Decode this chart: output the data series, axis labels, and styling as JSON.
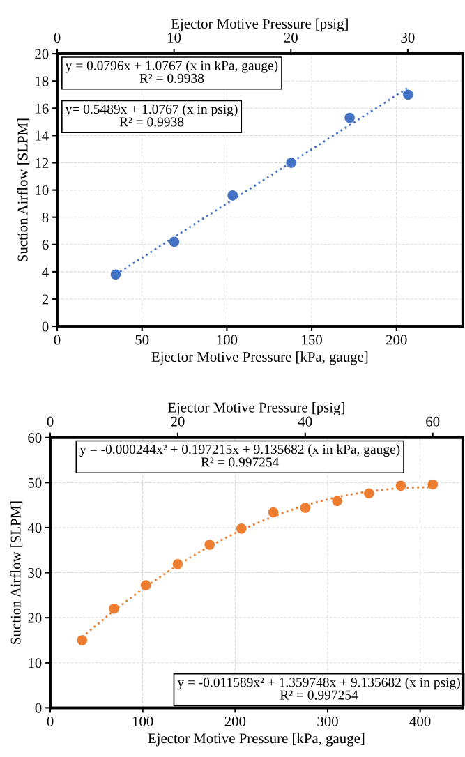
{
  "chart_data": [
    {
      "type": "scatter",
      "xlabel": "Ejector Motive Pressure [kPa, gauge]",
      "ylabel": "Suction Airflow [SLPM]",
      "x2label": "Ejector Motive Pressure [psig]",
      "x": [
        34.5,
        69,
        103.4,
        137.9,
        172.4,
        206.8
      ],
      "series": [
        {
          "color": "#4472c4",
          "values": [
            3.8,
            6.2,
            9.6,
            12.0,
            15.3,
            17.0
          ],
          "marker": "circle"
        },
        {
          "type": "line",
          "color": "#4472c4",
          "line_style": "dotted",
          "marker": "none",
          "x": [
            34.5,
            206.8
          ],
          "values": [
            3.8,
            17.5
          ]
        }
      ],
      "xlim": [
        0,
        239
      ],
      "xticks": [
        0,
        50,
        100,
        150,
        200
      ],
      "ylim": [
        0,
        20
      ],
      "yticks": [
        0,
        2,
        4,
        6,
        8,
        10,
        12,
        14,
        16,
        18,
        20
      ],
      "x2lim": [
        0,
        34.7
      ],
      "x2ticks": [
        0,
        10,
        20,
        30
      ],
      "grid": true,
      "annotations": [
        "y = 0.0796x + 1.0767 (x in kPa, gauge)\nR² = 0.9938",
        "y= 0.5489x + 1.0767 (x in psig)\nR² = 0.9938"
      ]
    },
    {
      "type": "scatter",
      "xlabel": "Ejector Motive Pressure [kPa, gauge]",
      "ylabel": "Suction Airflow [SLPM]",
      "x2label": "Ejector Motive Pressure [psig]",
      "x": [
        34.5,
        69,
        103.4,
        137.9,
        172.4,
        206.8,
        241.3,
        275.8,
        310.3,
        344.7,
        379.2,
        413.7
      ],
      "series": [
        {
          "color": "#ed7d31",
          "values": [
            15.0,
            22.0,
            27.2,
            31.9,
            36.2,
            39.8,
            43.4,
            44.4,
            45.9,
            47.6,
            49.3,
            49.6
          ],
          "marker": "circle"
        },
        {
          "type": "line",
          "color": "#ed7d31",
          "line_style": "dotted",
          "marker": "none",
          "x": [
            34.5,
            69,
            103.4,
            137.9,
            172.4,
            206.8,
            241.3,
            275.8,
            310.3,
            344.7,
            379.2,
            413.7
          ],
          "values": [
            15.7,
            21.6,
            26.9,
            31.7,
            35.9,
            39.5,
            42.5,
            45.0,
            46.8,
            48.1,
            48.8,
            49.0
          ]
        }
      ],
      "xlim": [
        0,
        446
      ],
      "xticks": [
        0,
        100,
        200,
        300,
        400
      ],
      "ylim": [
        0,
        60
      ],
      "yticks": [
        0,
        10,
        20,
        30,
        40,
        50,
        60
      ],
      "x2lim": [
        0,
        64.7
      ],
      "x2ticks": [
        0,
        20,
        40,
        60
      ],
      "grid": true,
      "annotations": [
        "y = -0.000244x² + 0.197215x + 9.135682 (x in kPa, gauge)\nR² = 0.997254",
        "y = -0.011589x² + 1.359748x + 9.135682 (x in psig)\nR² = 0.997254"
      ]
    }
  ]
}
